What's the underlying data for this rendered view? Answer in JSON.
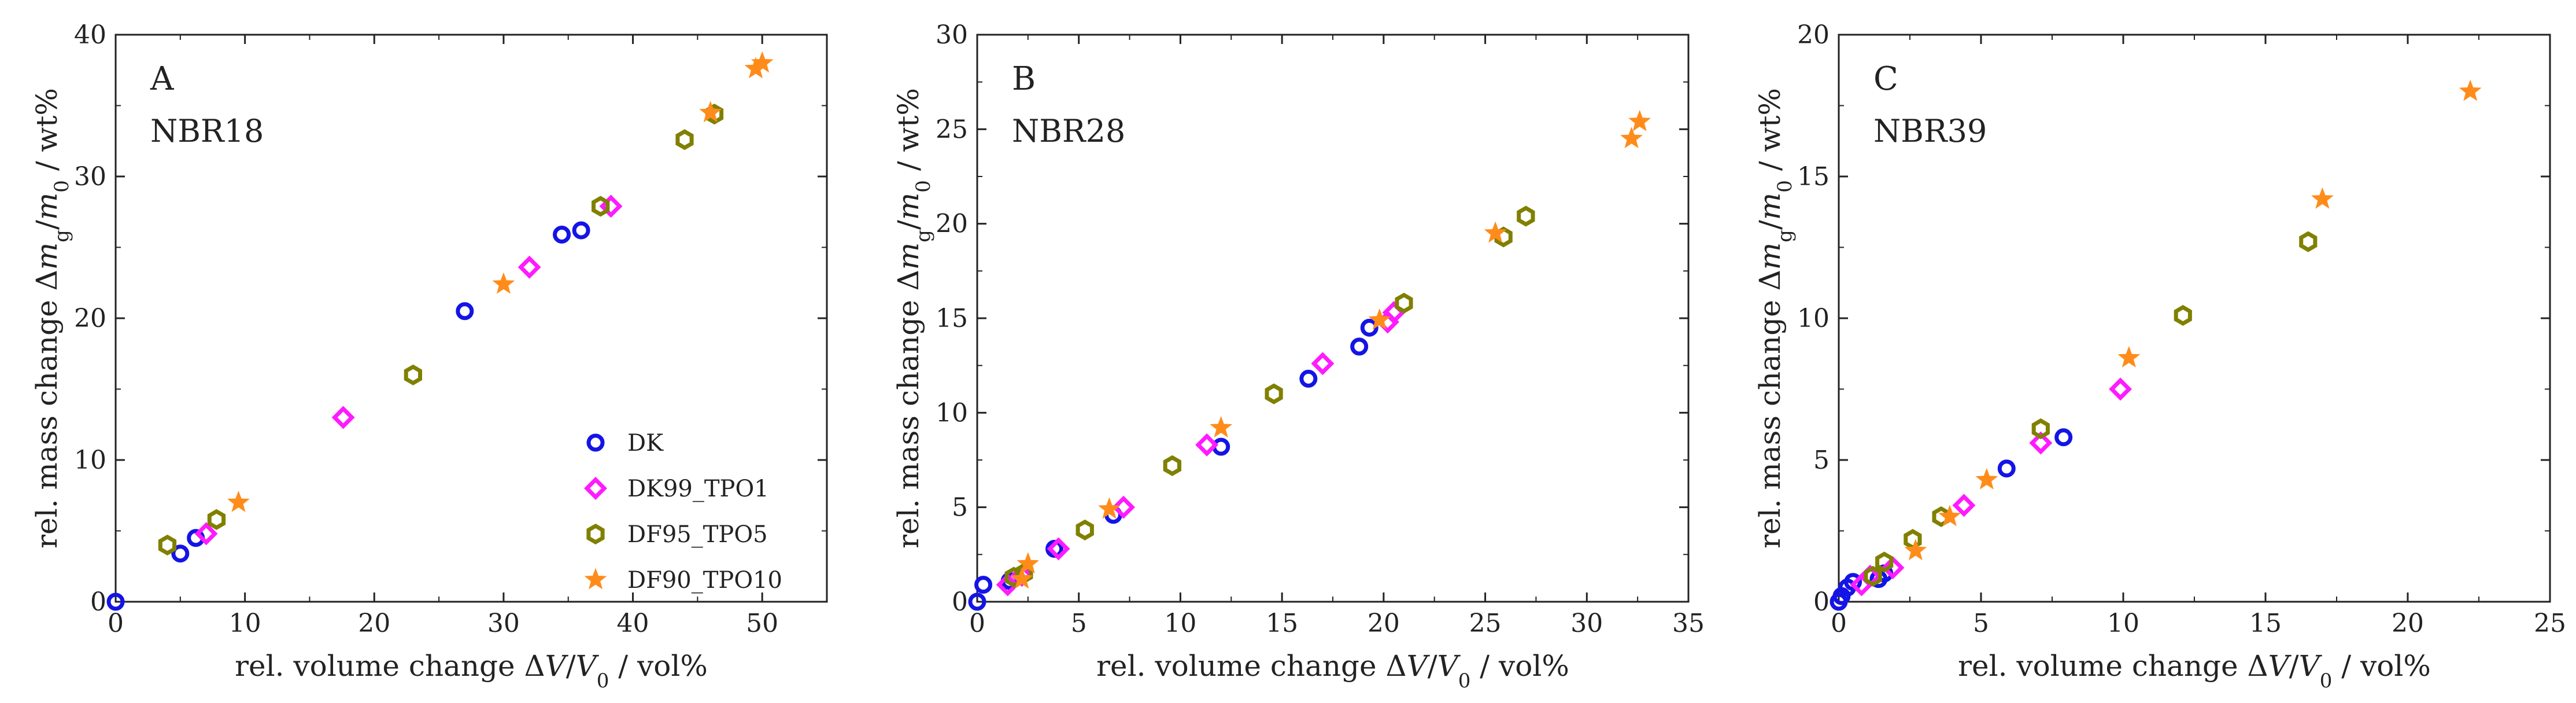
{
  "chart_data": [
    {
      "type": "scatter",
      "panel_letter": "A",
      "title": "NBR18",
      "xlabel": "rel. volume change ΔV/V₀ / vol%",
      "ylabel": "rel. mass change Δmg/m₀ / wt%",
      "xlim": [
        0,
        55
      ],
      "ylim": [
        0,
        40
      ],
      "xticks": [
        0,
        10,
        20,
        30,
        40,
        50
      ],
      "yticks": [
        0,
        10,
        20,
        30,
        40
      ],
      "legend": {
        "placement": "bottom-right",
        "entries": [
          "DK",
          "DK99_TPO1",
          "DF95_TPO5",
          "DF90_TPO10"
        ]
      },
      "series": [
        {
          "name": "DK",
          "color": "#1414e6",
          "marker": "circle",
          "x": [
            0,
            5,
            6.2,
            27,
            34.5,
            36
          ],
          "y": [
            0,
            3.4,
            4.5,
            20.5,
            25.9,
            26.2
          ]
        },
        {
          "name": "DK99_TPO1",
          "color": "#ff1aff",
          "marker": "diamond",
          "x": [
            7,
            17.6,
            32,
            38.3
          ],
          "y": [
            4.8,
            13,
            23.6,
            27.9
          ]
        },
        {
          "name": "DF95_TPO5",
          "color": "#808000",
          "marker": "hexagon",
          "x": [
            4,
            7.8,
            23,
            37.5,
            44,
            46.3
          ],
          "y": [
            4,
            5.8,
            16,
            27.9,
            32.6,
            34.4
          ]
        },
        {
          "name": "DF90_TPO10",
          "color": "#ff8c1a",
          "marker": "star",
          "x": [
            9.5,
            30,
            46,
            49.5,
            50
          ],
          "y": [
            7,
            22.4,
            34.5,
            37.6,
            38
          ]
        }
      ]
    },
    {
      "type": "scatter",
      "panel_letter": "B",
      "title": "NBR28",
      "xlabel": "rel. volume change ΔV/V₀ / vol%",
      "ylabel": "rel. mass change Δmg/m₀ / wt%",
      "xlim": [
        0,
        35
      ],
      "ylim": [
        0,
        30
      ],
      "xticks": [
        0,
        5,
        10,
        15,
        20,
        25,
        30,
        35
      ],
      "yticks": [
        0,
        5,
        10,
        15,
        20,
        25,
        30
      ],
      "series": [
        {
          "name": "DK",
          "color": "#1414e6",
          "marker": "circle",
          "x": [
            0,
            0.3,
            1.6,
            3.8,
            6.7,
            12,
            16.3,
            18.8,
            19.3
          ],
          "y": [
            0,
            0.9,
            1.1,
            2.8,
            4.6,
            8.2,
            11.8,
            13.5,
            14.5
          ]
        },
        {
          "name": "DK99_TPO1",
          "color": "#ff1aff",
          "marker": "diamond",
          "x": [
            1.5,
            2.2,
            4,
            7.2,
            11.3,
            17,
            20.2,
            20.5
          ],
          "y": [
            0.9,
            1.4,
            2.8,
            5,
            8.3,
            12.6,
            14.8,
            15.3
          ]
        },
        {
          "name": "DF95_TPO5",
          "color": "#808000",
          "marker": "hexagon",
          "x": [
            1.8,
            2.3,
            5.3,
            9.6,
            14.6,
            21,
            25.9,
            27
          ],
          "y": [
            1.3,
            1.5,
            3.8,
            7.2,
            11,
            15.8,
            19.3,
            20.4
          ]
        },
        {
          "name": "DF90_TPO10",
          "color": "#ff8c1a",
          "marker": "star",
          "x": [
            2.2,
            2.5,
            6.5,
            12,
            19.8,
            25.5,
            32.2,
            32.6
          ],
          "y": [
            1.2,
            2,
            4.9,
            9.2,
            14.9,
            19.5,
            24.5,
            25.4
          ]
        }
      ]
    },
    {
      "type": "scatter",
      "panel_letter": "C",
      "title": "NBR39",
      "xlabel": "rel. volume change ΔV/V₀ / vol%",
      "ylabel": "rel. mass change Δmg/m₀ / wt%",
      "xlim": [
        0,
        25
      ],
      "ylim": [
        0,
        20
      ],
      "xticks": [
        0,
        5,
        10,
        15,
        20,
        25
      ],
      "yticks": [
        0,
        5,
        10,
        15,
        20
      ],
      "series": [
        {
          "name": "DK",
          "color": "#1414e6",
          "marker": "circle",
          "x": [
            0,
            0.1,
            0.3,
            0.5,
            1.4,
            1.6,
            5.9,
            7.9
          ],
          "y": [
            0,
            0.2,
            0.5,
            0.7,
            0.8,
            1,
            4.7,
            5.8
          ]
        },
        {
          "name": "DK99_TPO1",
          "color": "#ff1aff",
          "marker": "diamond",
          "x": [
            0.8,
            1.1,
            1.9,
            4.4,
            7.1,
            9.9
          ],
          "y": [
            0.6,
            0.9,
            1.2,
            3.4,
            5.6,
            7.5
          ]
        },
        {
          "name": "DF95_TPO5",
          "color": "#808000",
          "marker": "hexagon",
          "x": [
            1.2,
            1.6,
            2.6,
            3.6,
            7.1,
            12.1,
            16.5
          ],
          "y": [
            0.9,
            1.4,
            2.2,
            3,
            6.1,
            10.1,
            12.7
          ]
        },
        {
          "name": "DF90_TPO10",
          "color": "#ff8c1a",
          "marker": "star",
          "x": [
            2.7,
            3.9,
            5.2,
            10.2,
            17,
            22.2
          ],
          "y": [
            1.8,
            3,
            4.3,
            8.6,
            14.2,
            18
          ]
        }
      ]
    }
  ]
}
